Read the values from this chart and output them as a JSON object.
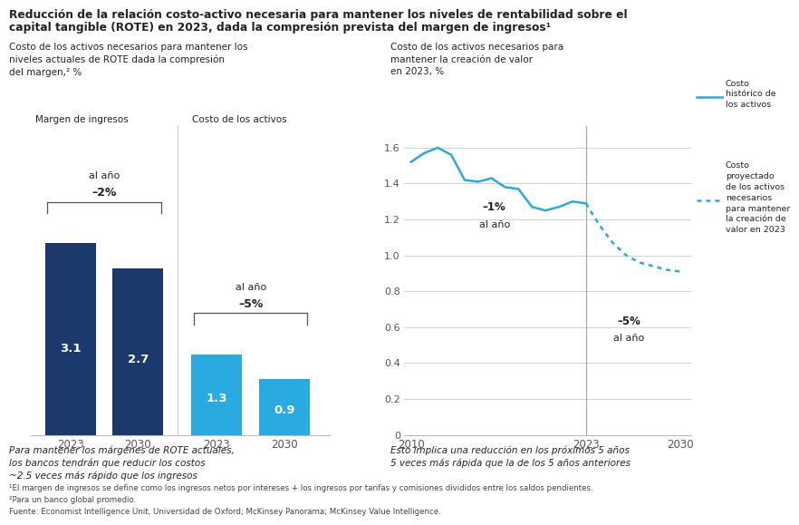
{
  "title_line1": "Reducción de la relación costo-activo necesaria para mantener los niveles de rentabilidad sobre el",
  "title_line2": "capital tangible (ROTE) en 2023, dada la compresión prevista del margen de ingresos¹",
  "left_subtitle": "Costo de los activos necesarios para mantener los\nniveles actuales de ROTE dada la compresión\ndel margen,² %",
  "right_subtitle": "Costo de los activos necesarios para\nmantener la creación de valor\nen 2023, %",
  "bar_group1_label": "Margen de ingresos",
  "bar_group2_label": "Costo de los activos",
  "bar_dark_color": "#1b3a6b",
  "bar_light_color": "#29aae1",
  "bar_group1": [
    3.1,
    2.7
  ],
  "bar_group2": [
    1.3,
    0.9
  ],
  "line_years_hist": [
    2010,
    2011,
    2012,
    2013,
    2014,
    2015,
    2016,
    2017,
    2018,
    2019,
    2020,
    2021,
    2022,
    2023
  ],
  "line_values_hist": [
    1.52,
    1.57,
    1.6,
    1.56,
    1.42,
    1.41,
    1.43,
    1.38,
    1.37,
    1.27,
    1.25,
    1.27,
    1.3,
    1.29
  ],
  "line_years_proj": [
    2023,
    2024,
    2025,
    2026,
    2027,
    2028,
    2029,
    2030
  ],
  "line_values_proj": [
    1.29,
    1.17,
    1.07,
    1.0,
    0.96,
    0.94,
    0.92,
    0.91
  ],
  "line_color": "#29aae1",
  "legend1": "Costo\nhistórico de\nlos activos",
  "legend2": "Costo\nproyectado\nde los activos\nnecesarios\npara mantener\nla creación de\nvalor en 2023",
  "left_note": "Para mantener los márgenes de ROTE actuales,\nlos bancos tendrán que reducir los costos\n~2.5 veces más rápido que los ingresos",
  "right_note": "Esto implica una reducción en los próximos 5 años\n5 veces más rápida que la de los 5 años anteriores",
  "footnote1": "¹El margen de ingresos se define como los ingresos netos por intereses + los ingresos por tarifas y comisiones divididos entre los saldos pendientes.",
  "footnote2": "²Para un banco global promedio.",
  "footnote3": "Fuente: Economist Intelligence Unit, Universidad de Oxford; McKinsey Panorama; McKinsey Value Intelligence.",
  "bg_color": "#ffffff",
  "text_color": "#222222",
  "grid_color": "#cccccc"
}
